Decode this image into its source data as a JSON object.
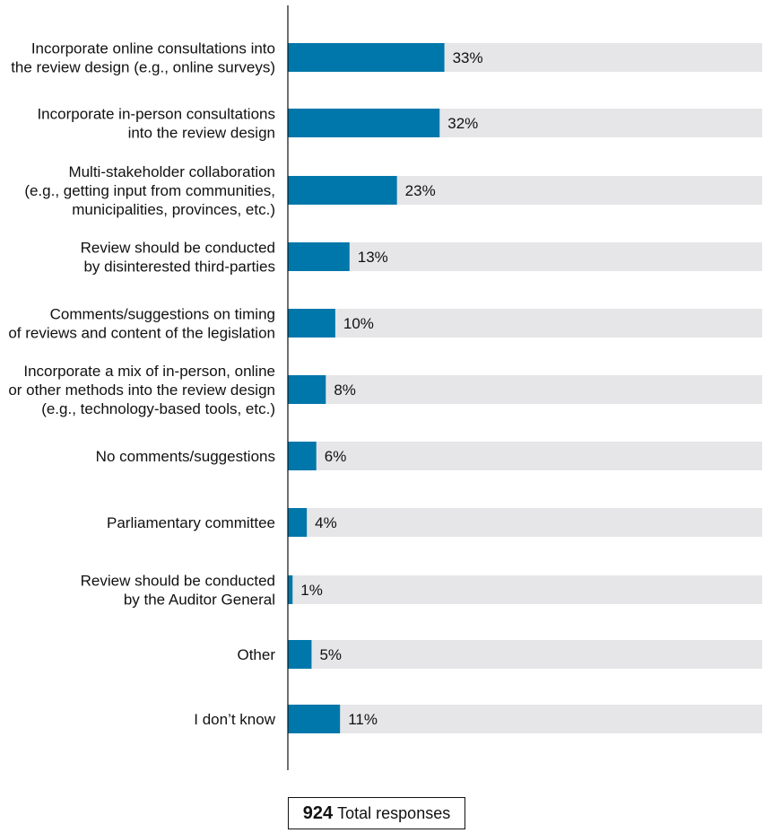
{
  "chart_data": {
    "type": "bar",
    "orientation": "horizontal",
    "categories": [
      [
        "Incorporate online consultations into",
        "the review design (e.g., online surveys)"
      ],
      [
        "Incorporate in-person consultations",
        "into the review design"
      ],
      [
        "Multi-stakeholder collaboration",
        "(e.g., getting input from communities,",
        "municipalities, provinces, etc.)"
      ],
      [
        "Review should be conducted",
        "by disinterested third-parties"
      ],
      [
        "Comments/suggestions on timing",
        "of reviews and content of the legislation"
      ],
      [
        "Incorporate a mix of in-person, online",
        "or other methods into the review design",
        "(e.g., technology-based tools, etc.)"
      ],
      [
        "No comments/suggestions"
      ],
      [
        "Parliamentary committee"
      ],
      [
        "Review should be conducted",
        "by the Auditor General"
      ],
      [
        "Other"
      ],
      [
        "I don’t know"
      ]
    ],
    "values": [
      33,
      32,
      23,
      13,
      10,
      8,
      6,
      4,
      1,
      5,
      11
    ],
    "value_labels": [
      "33%",
      "32%",
      "23%",
      "13%",
      "10%",
      "8%",
      "6%",
      "4%",
      "1%",
      "5%",
      "11%"
    ],
    "xlim": [
      0,
      100
    ],
    "title": "",
    "xlabel": "",
    "ylabel": "",
    "grid": false,
    "colors": {
      "bar": "#0077aa",
      "track": "#e6e6e8",
      "axis": "#111111"
    }
  },
  "footer": {
    "total_number": "924",
    "total_label": "Total responses"
  }
}
